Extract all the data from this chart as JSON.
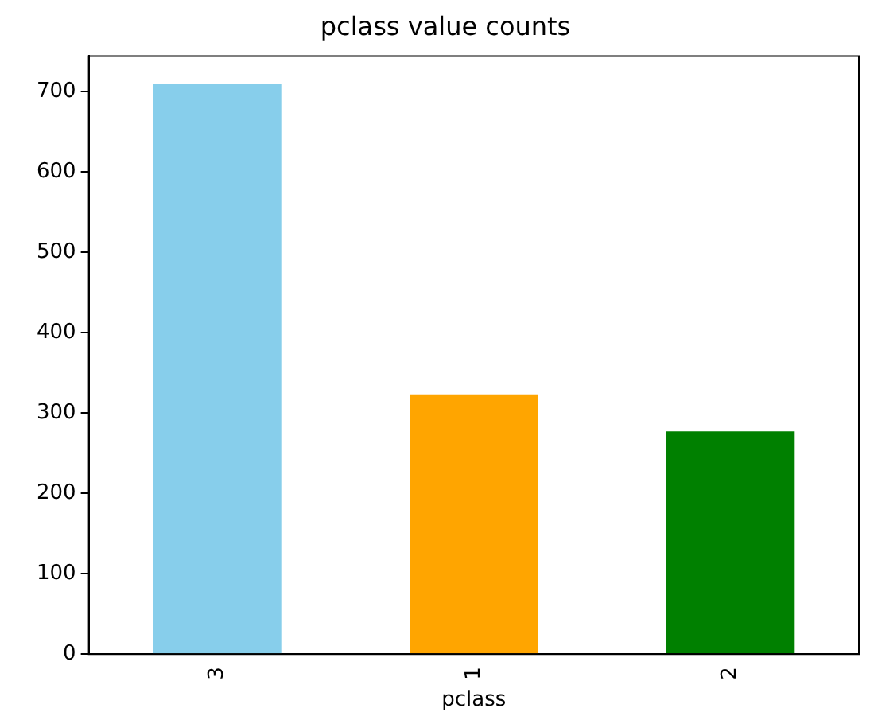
{
  "chart_data": {
    "type": "bar",
    "title": "pclass value counts",
    "xlabel": "pclass",
    "categories": [
      "3",
      "1",
      "2"
    ],
    "values": [
      709,
      323,
      277
    ],
    "colors": [
      "#87ceeb",
      "#ffa500",
      "#008000"
    ],
    "ylim": [
      0,
      744
    ],
    "yticks": [
      0,
      100,
      200,
      300,
      400,
      500,
      600,
      700
    ],
    "grid": false,
    "legend": false
  }
}
